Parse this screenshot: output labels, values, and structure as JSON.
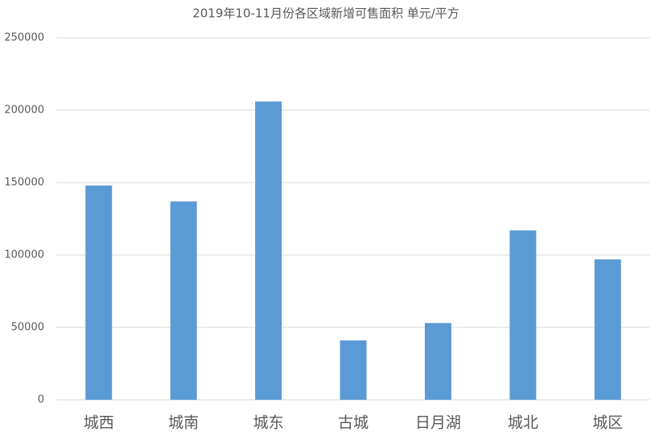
{
  "chart_data": {
    "type": "bar",
    "title": "2019年10-11月份各区域新增可售面积 单元/平方",
    "categories": [
      "城西",
      "城南",
      "城东",
      "古城",
      "日月湖",
      "城北",
      "城区"
    ],
    "values": [
      148000,
      137000,
      206000,
      41000,
      53000,
      117000,
      97000
    ],
    "color": "#5b9bd5",
    "ylim": [
      0,
      250000
    ],
    "yticks": [
      0,
      50000,
      100000,
      150000,
      200000,
      250000
    ],
    "grid": true
  }
}
